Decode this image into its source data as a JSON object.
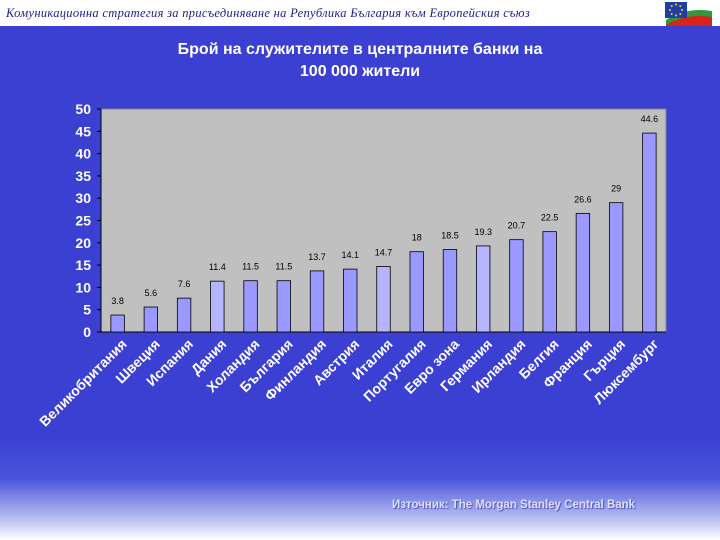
{
  "header": {
    "title": "Комуникационна стратегия за присъединяване на Република България към Европейския съюз",
    "logo_icon": "eu-bulgaria-flag-icon",
    "colors": {
      "eu_blue": "#1f3fa8",
      "star_yellow": "#ffd400",
      "bg_white": "#ffffff",
      "bg_green": "#2e9a3a",
      "bg_red": "#d8231b"
    }
  },
  "colors": {
    "background": "#3b3fd0",
    "plot_area": "#c0c0c0",
    "bar_fill": "#9999ff",
    "bar_highlight": "#b4b4ff",
    "text": "#ffffff"
  },
  "chart_data": {
    "type": "bar",
    "title_line1": "Брой на служителите в централните банки на",
    "title_line2": "100 000 жители",
    "categories": [
      "Великобритания",
      "Швеция",
      "Испания",
      "Дания",
      "Холандия",
      "България",
      "Финландия",
      "Австрия",
      "Италия",
      "Португалия",
      "Евро зона",
      "Германия",
      "Ирландия",
      "Белгия",
      "Франция",
      "Гърция",
      "Люксембург"
    ],
    "values": [
      3.8,
      5.6,
      7.6,
      11.4,
      11.5,
      11.5,
      13.7,
      14.1,
      14.7,
      18,
      18.5,
      19.3,
      20.7,
      22.5,
      26.6,
      29,
      44.6
    ],
    "value_labels": [
      "3.8",
      "5.6",
      "7.6",
      "11.4",
      "11.5",
      "11.5",
      "13.7",
      "14.1",
      "14.7",
      "18",
      "18.5",
      "19.3",
      "20.7",
      "22.5",
      "26.6",
      "29",
      "44.6"
    ],
    "highlighted_categories": [
      "Дания",
      "Италия",
      "Германия"
    ],
    "ylim": [
      0,
      50
    ],
    "yticks": [
      "0",
      "5",
      "10",
      "15",
      "20",
      "25",
      "30",
      "35",
      "40",
      "45",
      "50"
    ],
    "xlabel": "",
    "ylabel": "",
    "grid": false,
    "legend": false
  },
  "source": "Източник: The Morgan Stanley Central Bank"
}
